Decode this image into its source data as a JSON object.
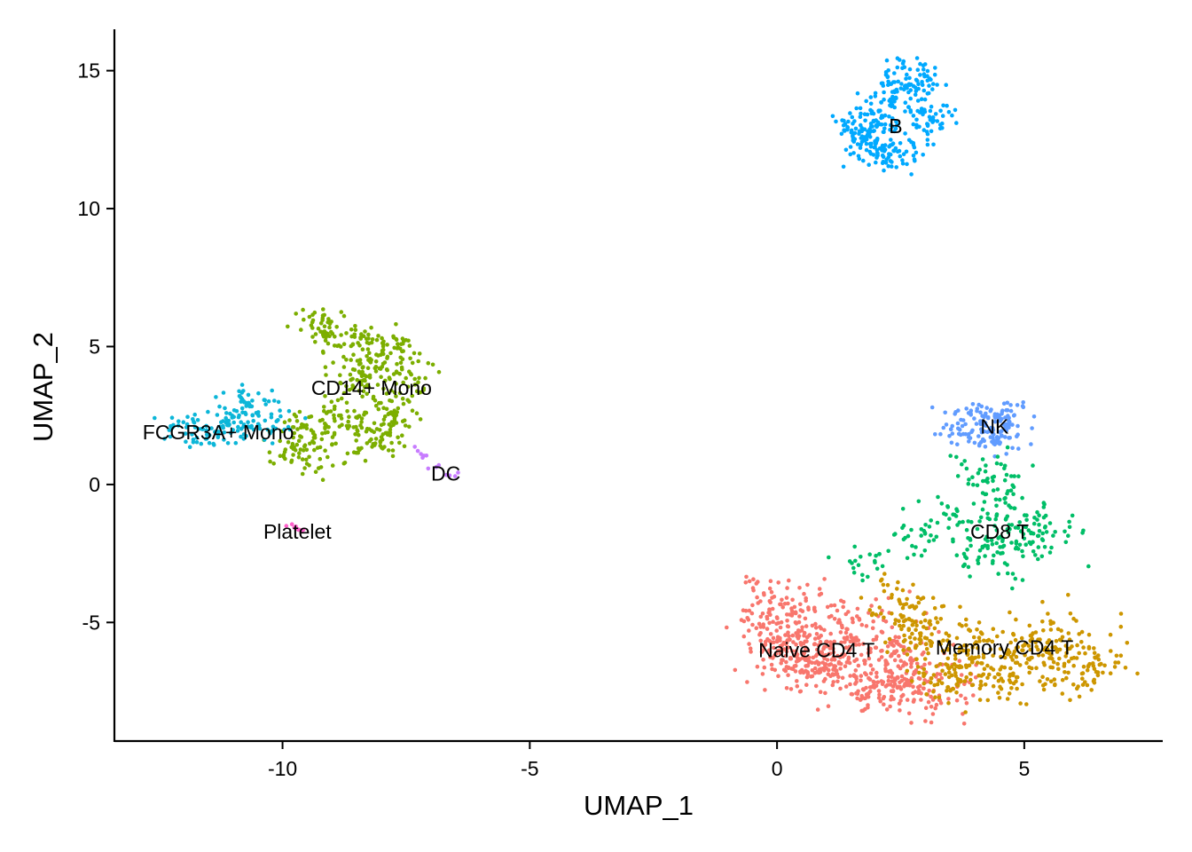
{
  "chart_data": {
    "type": "scatter",
    "title": "",
    "xlabel": "UMAP_1",
    "ylabel": "UMAP_2",
    "xlim": [
      -13.4,
      7.8
    ],
    "ylim": [
      -9.3,
      16.5
    ],
    "x_ticks": [
      {
        "value": -10,
        "label": "-10"
      },
      {
        "value": -5,
        "label": "-5"
      },
      {
        "value": 0,
        "label": "0"
      },
      {
        "value": 5,
        "label": "5"
      }
    ],
    "y_ticks": [
      {
        "value": -5,
        "label": "-5"
      },
      {
        "value": 0,
        "label": "0"
      },
      {
        "value": 5,
        "label": "5"
      },
      {
        "value": 10,
        "label": "10"
      },
      {
        "value": 15,
        "label": "15"
      }
    ],
    "grid": false,
    "legend": "none",
    "series": [
      {
        "name": "Naive CD4 T",
        "color": "#F8766D",
        "label_pos": [
          0.8,
          -6.0
        ],
        "centers": [
          [
            0.0,
            -4.4
          ],
          [
            0.4,
            -5.3
          ],
          [
            1.0,
            -6.2
          ],
          [
            1.7,
            -6.9
          ],
          [
            2.3,
            -7.4
          ],
          [
            1.5,
            -5.0
          ],
          [
            0.6,
            -6.7
          ],
          [
            2.6,
            -6.3
          ],
          [
            3.1,
            -7.5
          ],
          [
            0.2,
            -6.0
          ]
        ],
        "spread": [
          0.42,
          0.55
        ]
      },
      {
        "name": "Memory CD4 T",
        "color": "#CD9600",
        "label_pos": [
          4.6,
          -5.9
        ],
        "centers": [
          [
            2.8,
            -5.1
          ],
          [
            3.8,
            -5.8
          ],
          [
            4.8,
            -6.2
          ],
          [
            5.8,
            -6.4
          ],
          [
            6.5,
            -6.5
          ],
          [
            3.6,
            -7.1
          ],
          [
            4.6,
            -7.3
          ],
          [
            2.5,
            -4.5
          ],
          [
            5.5,
            -5.6
          ],
          [
            3.2,
            -6.3
          ]
        ],
        "spread": [
          0.38,
          0.55
        ]
      },
      {
        "name": "CD14+ Mono",
        "color": "#7CAE00",
        "label_pos": [
          -8.2,
          3.5
        ],
        "centers": [
          [
            -9.2,
            5.8
          ],
          [
            -8.7,
            5.2
          ],
          [
            -8.1,
            4.6
          ],
          [
            -7.6,
            3.8
          ],
          [
            -8.6,
            3.6
          ],
          [
            -7.9,
            2.6
          ],
          [
            -8.8,
            2.2
          ],
          [
            -9.5,
            1.8
          ],
          [
            -8.2,
            1.5
          ],
          [
            -9.6,
            1.2
          ],
          [
            -7.7,
            4.9
          ]
        ],
        "spread": [
          0.32,
          0.4
        ]
      },
      {
        "name": "NK",
        "color": "#619CFF",
        "label_pos": [
          4.4,
          2.1
        ],
        "centers": [
          [
            4.2,
            2.6
          ],
          [
            4.6,
            2.4
          ],
          [
            3.8,
            2.0
          ],
          [
            4.5,
            1.7
          ]
        ],
        "spread": [
          0.28,
          0.25
        ]
      },
      {
        "name": "CD8 T",
        "color": "#00BE67",
        "label_pos": [
          4.5,
          -1.7
        ],
        "centers": [
          [
            4.3,
            0.4
          ],
          [
            4.6,
            -0.5
          ],
          [
            4.4,
            -1.3
          ],
          [
            5.0,
            -1.5
          ],
          [
            5.5,
            -1.7
          ],
          [
            3.5,
            -1.2
          ],
          [
            2.8,
            -2.0
          ],
          [
            4.1,
            -2.4
          ],
          [
            4.8,
            -2.6
          ],
          [
            1.8,
            -2.8
          ]
        ],
        "spread": [
          0.35,
          0.4
        ]
      },
      {
        "name": "B",
        "color": "#00A9FF",
        "label_pos": [
          2.4,
          13.0
        ],
        "centers": [
          [
            1.8,
            12.7
          ],
          [
            2.2,
            13.6
          ],
          [
            2.7,
            14.4
          ],
          [
            3.0,
            13.2
          ],
          [
            2.4,
            12.0
          ],
          [
            2.0,
            12.3
          ],
          [
            2.6,
            14.8
          ],
          [
            1.7,
            13.2
          ]
        ],
        "spread": [
          0.28,
          0.38
        ]
      },
      {
        "name": "FCGR3A+ Mono",
        "color": "#0CB6D8",
        "label_pos": [
          -11.3,
          1.9
        ],
        "centers": [
          [
            -12.0,
            2.0
          ],
          [
            -11.4,
            2.1
          ],
          [
            -10.9,
            2.3
          ],
          [
            -10.5,
            2.6
          ],
          [
            -11.2,
            1.7
          ],
          [
            -10.3,
            2.0
          ],
          [
            -10.7,
            3.0
          ]
        ],
        "spread": [
          0.3,
          0.3
        ]
      },
      {
        "name": "DC",
        "color": "#C77CFF",
        "label_pos": [
          -6.7,
          0.4
        ],
        "centers": [
          [
            -7.2,
            0.9
          ],
          [
            -6.9,
            0.6
          ],
          [
            -6.6,
            0.3
          ],
          [
            -7.3,
            1.2
          ]
        ],
        "spread": [
          0.09,
          0.09
        ]
      },
      {
        "name": "Platelet",
        "color": "#FF61CC",
        "label_pos": [
          -9.7,
          -1.7
        ],
        "centers": [
          [
            -9.8,
            -1.5
          ],
          [
            -9.7,
            -1.65
          ]
        ],
        "spread": [
          0.07,
          0.06
        ]
      }
    ],
    "cell_counts": [
      700,
      480,
      480,
      155,
      270,
      340,
      160,
      14,
      10
    ]
  }
}
